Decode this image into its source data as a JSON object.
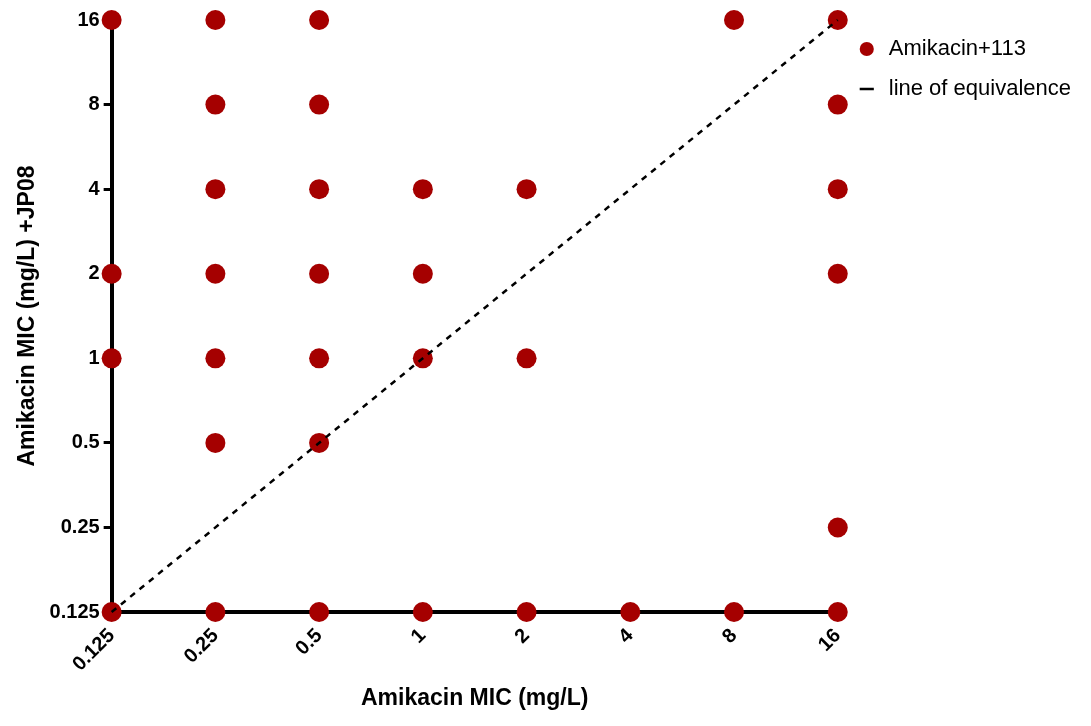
{
  "chart_data": {
    "type": "scatter",
    "xlabel": "Amikacin MIC (mg/L)",
    "ylabel": "Amikacin MIC (mg/L) +JP08",
    "log": "xy",
    "xlim": [
      0.125,
      16
    ],
    "ylim": [
      0.125,
      16
    ],
    "xticks": [
      0.125,
      0.25,
      0.5,
      1,
      2,
      4,
      8,
      16
    ],
    "yticks": [
      0.125,
      0.25,
      0.5,
      1,
      2,
      4,
      8,
      16
    ],
    "legend": "top right",
    "marker": "circle",
    "series": [
      {
        "name": "Amikacin+113",
        "color": "#a50000",
        "x": [
          0.125,
          0.25,
          0.5,
          8,
          16,
          0.25,
          0.5,
          16,
          0.25,
          0.5,
          1,
          2,
          16,
          0.125,
          0.25,
          0.5,
          1,
          16,
          0.125,
          0.25,
          0.5,
          1,
          2,
          0.25,
          0.5,
          16,
          0.125,
          0.25,
          0.5,
          1,
          2,
          4,
          8,
          16
        ],
        "values": [
          16,
          16,
          16,
          16,
          16,
          8,
          8,
          8,
          4,
          4,
          4,
          4,
          4,
          2,
          2,
          2,
          2,
          2,
          1,
          1,
          1,
          1,
          1,
          0.5,
          0.5,
          0.25,
          0.125,
          0.125,
          0.125,
          0.125,
          0.125,
          0.125,
          0.125,
          0.125
        ]
      },
      {
        "name": "line of equivalence",
        "type": "line",
        "color": "#000000",
        "line_style": "dashed",
        "marker": "none",
        "x": [
          0.125,
          16
        ],
        "values": [
          0.125,
          16
        ]
      }
    ]
  }
}
